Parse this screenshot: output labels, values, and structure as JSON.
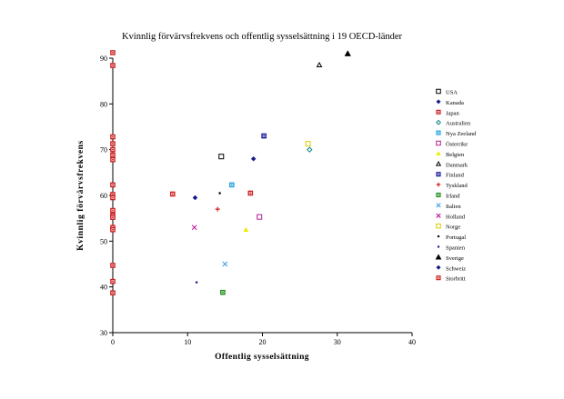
{
  "chart_data": {
    "type": "scatter",
    "title": "Kvinnlig förvärvsfrekvens och offentlig sysselsättning i 19 OECD-länder",
    "xlabel": "Offentlig sysselsättning",
    "ylabel": "Kvinnlig förvärvsfrekvens",
    "xlim": [
      0,
      40
    ],
    "ylim": [
      30,
      90
    ],
    "xticks": [
      "0",
      "10",
      "20",
      "30",
      "40"
    ],
    "yticks": [
      "30",
      "40",
      "50",
      "60",
      "70",
      "80",
      "90"
    ],
    "grid": false,
    "legend_position": "right",
    "series": [
      {
        "name": "USA",
        "marker": "square-open",
        "color": "#000000",
        "x": [
          14.5
        ],
        "y": [
          68.5
        ]
      },
      {
        "name": "Kanada",
        "marker": "diamond",
        "color": "#1a1a8c",
        "x": [
          18.8
        ],
        "y": [
          68.0
        ]
      },
      {
        "name": "Japan",
        "marker": "square",
        "color": "#cc1f1f",
        "x": [
          8.0
        ],
        "y": [
          60.3
        ]
      },
      {
        "name": "Australien",
        "marker": "diamond-open",
        "color": "#008080",
        "x": [
          26.3
        ],
        "y": [
          70.0
        ]
      },
      {
        "name": "Nya Zeeland",
        "marker": "square",
        "color": "#1fa3e0",
        "x": [
          15.9
        ],
        "y": [
          62.3
        ]
      },
      {
        "name": "Österrike",
        "marker": "square-open",
        "color": "#b0208f",
        "x": [
          19.6
        ],
        "y": [
          55.3
        ]
      },
      {
        "name": "Belgien",
        "marker": "triangle",
        "color": "#ecec00",
        "x": [
          17.8
        ],
        "y": [
          52.5
        ]
      },
      {
        "name": "Danmark",
        "marker": "triangle-open",
        "color": "#000000",
        "x": [
          27.6
        ],
        "y": [
          88.5
        ]
      },
      {
        "name": "Finland",
        "marker": "square",
        "color": "#16169c",
        "x": [
          20.2
        ],
        "y": [
          73.0
        ]
      },
      {
        "name": "Tyskland",
        "marker": "plus",
        "color": "#d42020",
        "x": [
          14.0
        ],
        "y": [
          57.0
        ]
      },
      {
        "name": "Irland",
        "marker": "square",
        "color": "#1a8c1a",
        "x": [
          14.7
        ],
        "y": [
          38.8
        ]
      },
      {
        "name": "Italien",
        "marker": "x",
        "color": "#3aa0e0",
        "x": [
          15.0
        ],
        "y": [
          45.0
        ]
      },
      {
        "name": "Holland",
        "marker": "x",
        "color": "#c0209a",
        "x": [
          10.9
        ],
        "y": [
          53.0
        ]
      },
      {
        "name": "Norge",
        "marker": "square-open",
        "color": "#dccc00",
        "x": [
          26.1
        ],
        "y": [
          71.3
        ]
      },
      {
        "name": "Portugal",
        "marker": "dot",
        "color": "#000000",
        "x": [
          14.3
        ],
        "y": [
          60.5
        ]
      },
      {
        "name": "Spanien",
        "marker": "dot",
        "color": "#1a1a8c",
        "x": [
          11.2
        ],
        "y": [
          41.0
        ]
      },
      {
        "name": "Sverige",
        "marker": "triangle",
        "color": "#000000",
        "x": [
          31.4
        ],
        "y": [
          91.0
        ]
      },
      {
        "name": "Schweiz",
        "marker": "diamond",
        "color": "#1a1a8c",
        "x": [
          11.0
        ],
        "y": [
          59.5
        ]
      },
      {
        "name": "Storbritt",
        "marker": "square",
        "color": "#cc1f1f",
        "x": [
          18.4
        ],
        "y": [
          60.5
        ]
      }
    ],
    "axis_markers": {
      "marker": "square",
      "color": "#cc1f1f",
      "x": 0,
      "y": [
        91.2,
        88.4,
        72.8,
        71.3,
        70.0,
        68.8,
        67.8,
        62.3,
        60.2,
        59.5,
        56.7,
        55.6,
        55.2,
        53.0,
        52.5,
        44.7,
        41.2,
        38.7
      ]
    }
  }
}
